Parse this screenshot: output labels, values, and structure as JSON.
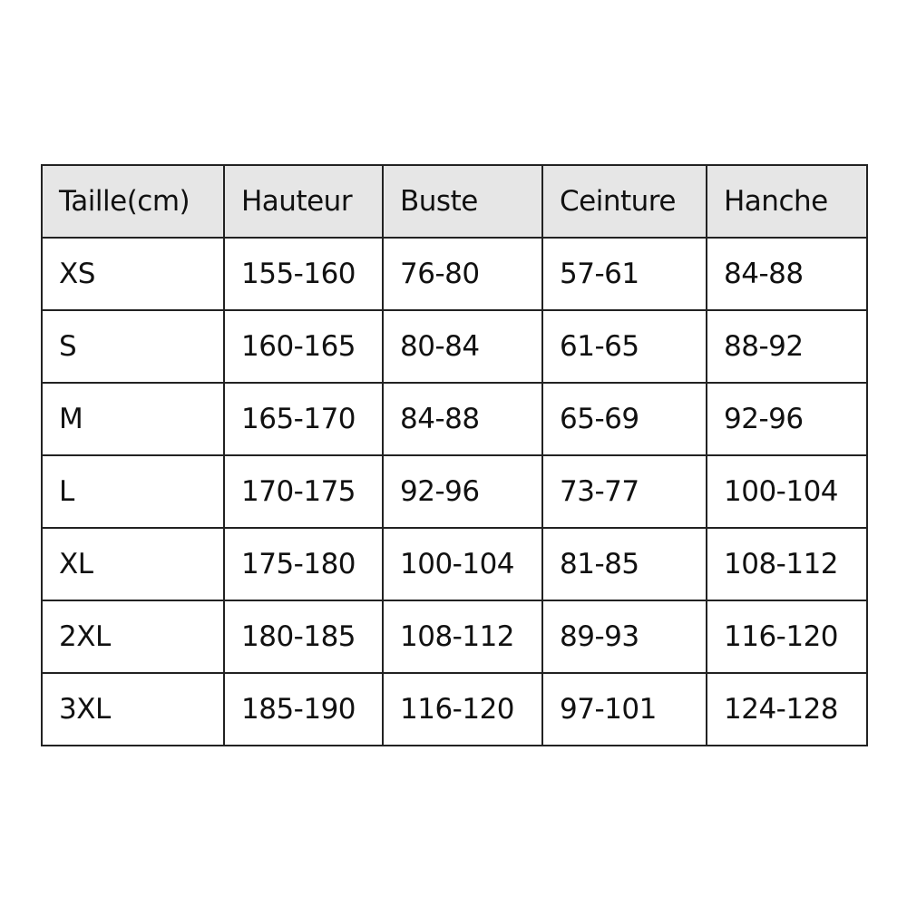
{
  "table": {
    "headers": [
      "Taille(cm)",
      "Hauteur",
      "Buste",
      "Ceinture",
      "Hanche"
    ],
    "rows": [
      [
        "XS",
        "155-160",
        "76-80",
        "57-61",
        "84-88"
      ],
      [
        "S",
        "160-165",
        "80-84",
        "61-65",
        "88-92"
      ],
      [
        "M",
        "165-170",
        "84-88",
        "65-69",
        "92-96"
      ],
      [
        "L",
        "170-175",
        "92-96",
        "73-77",
        "100-104"
      ],
      [
        "XL",
        "175-180",
        "100-104",
        "81-85",
        "108-112"
      ],
      [
        "2XL",
        "180-185",
        "108-112",
        "89-93",
        "116-120"
      ],
      [
        "3XL",
        "185-190",
        "116-120",
        "97-101",
        "124-128"
      ]
    ],
    "header_bg": "#e6e6e6"
  }
}
